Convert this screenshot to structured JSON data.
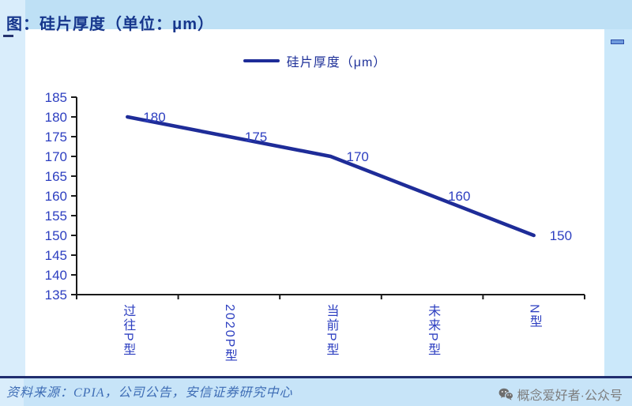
{
  "header": {
    "title": "图：硅片厚度（单位：μm）"
  },
  "chart_data": {
    "type": "line",
    "title": "硅片厚度（单位：μm）",
    "categories": [
      "过往P型",
      "2020P型",
      "当前P型",
      "未来P型",
      "N型"
    ],
    "series": [
      {
        "name": "硅片厚度（μm）",
        "values": [
          180,
          175,
          170,
          160,
          150
        ]
      }
    ],
    "ylim": [
      135,
      185
    ],
    "ytick_step": 5,
    "show_data_labels": true,
    "grid": false,
    "legend_position": "top-center",
    "x_label_orientation": "vertical"
  },
  "footer": {
    "source": "资料来源：CPIA，公司公告，安信证券研究中心"
  },
  "watermark": {
    "icon": "wechat-icon",
    "text": "概念爱好者·公众号"
  },
  "colors": {
    "line": "#1E2C98",
    "axis": "#1A1A1A",
    "tick_label": "#2C3EC0",
    "data_label": "#2C3EC0",
    "title": "#16368C",
    "legend_text": "#1F3199",
    "top_band": "#BEE0F5",
    "left_strip": "#D9EDFB",
    "right_strip": "#CBE8FA",
    "bottom_band": "#C7E4F8",
    "separator": "#212E6F",
    "source_text": "#3E6DB5",
    "watermark": "#7D7D7D"
  }
}
